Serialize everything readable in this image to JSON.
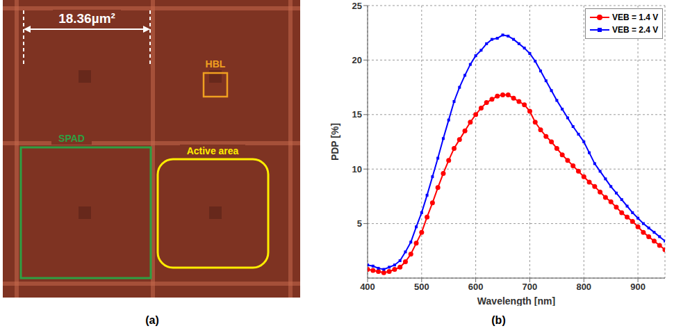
{
  "image_panel": {
    "caption": "(a)",
    "scale_label": "18.36µm²",
    "labels": {
      "hbl": "HBL",
      "spad": "SPAD",
      "active_area": "Active area"
    }
  },
  "chart_data": {
    "type": "line",
    "caption": "(b)",
    "x_label": "Wavelength [nm]",
    "y_label": "PDP [%]",
    "xlim": [
      400,
      950
    ],
    "xticks": [
      400,
      500,
      600,
      700,
      800,
      900
    ],
    "ylim": [
      0,
      25
    ],
    "yticks": [
      5,
      10,
      15,
      20,
      25
    ],
    "grid": true,
    "legend": "upper right",
    "x": [
      400,
      410,
      420,
      430,
      440,
      450,
      460,
      470,
      480,
      490,
      500,
      510,
      520,
      530,
      540,
      550,
      560,
      570,
      580,
      590,
      600,
      610,
      620,
      630,
      640,
      650,
      660,
      670,
      680,
      690,
      700,
      710,
      720,
      730,
      740,
      750,
      760,
      770,
      780,
      790,
      800,
      810,
      820,
      830,
      840,
      850,
      860,
      870,
      880,
      890,
      900,
      910,
      920,
      930,
      940,
      950
    ],
    "series": [
      {
        "name": "VEB = 1.4 V",
        "color": "#ff0000",
        "marker": "circle",
        "line_style": "solid",
        "values": [
          0.8,
          0.7,
          0.6,
          0.5,
          0.6,
          0.8,
          1.0,
          1.5,
          2.2,
          3.2,
          4.2,
          5.6,
          6.9,
          8.3,
          9.6,
          10.8,
          11.9,
          12.7,
          13.5,
          14.3,
          15.0,
          15.6,
          16.1,
          16.4,
          16.7,
          16.8,
          16.8,
          16.5,
          16.2,
          15.9,
          15.3,
          14.3,
          13.6,
          13.0,
          12.5,
          11.9,
          11.3,
          10.8,
          10.3,
          9.8,
          9.3,
          8.8,
          8.4,
          7.9,
          7.4,
          7.0,
          6.5,
          6.0,
          5.6,
          5.2,
          4.7,
          4.2,
          3.8,
          3.4,
          3.0,
          2.6
        ]
      },
      {
        "name": "VEB = 2.4 V",
        "color": "#0000ff",
        "marker": "square",
        "line_style": "solid",
        "values": [
          1.2,
          1.1,
          0.9,
          0.8,
          1.0,
          1.2,
          1.6,
          2.4,
          3.3,
          4.7,
          6.0,
          7.6,
          9.3,
          11.0,
          12.8,
          14.5,
          16.2,
          17.5,
          18.6,
          19.6,
          20.4,
          20.9,
          21.5,
          21.9,
          22.0,
          22.3,
          22.2,
          21.9,
          21.5,
          21.1,
          20.6,
          19.9,
          19.0,
          18.1,
          17.2,
          16.3,
          15.5,
          14.7,
          13.9,
          13.2,
          12.5,
          11.5,
          10.5,
          9.8,
          9.1,
          8.4,
          7.8,
          7.2,
          6.6,
          6.0,
          5.5,
          5.0,
          4.6,
          4.2,
          3.8,
          3.4
        ]
      }
    ]
  }
}
